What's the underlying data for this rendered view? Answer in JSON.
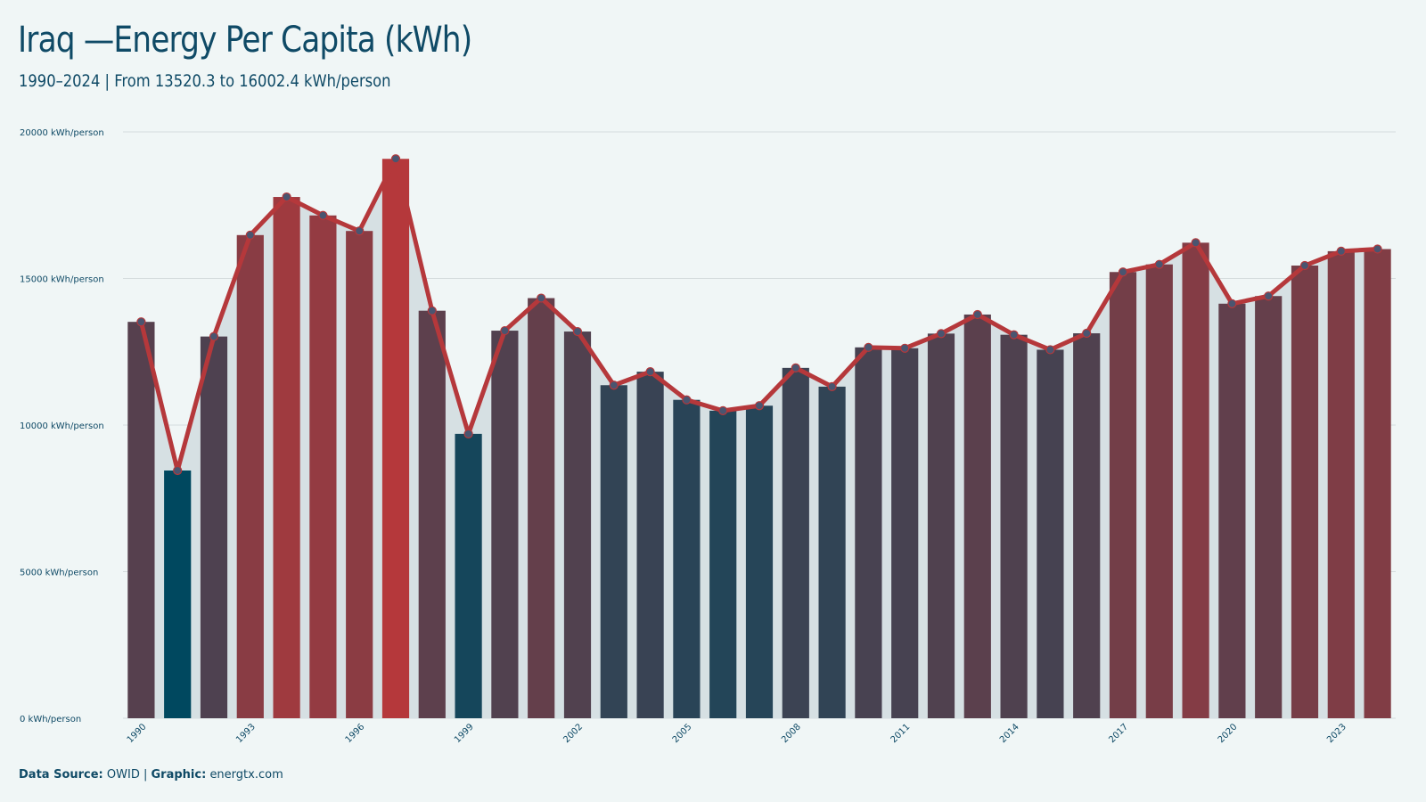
{
  "header": {
    "title": "Iraq —Energy Per Capita (kWh)",
    "subtitle": "1990–2024 | From 13520.3  to 16002.4  kWh/person"
  },
  "footer": {
    "source_label": "Data Source:",
    "source_value": "OWID",
    "separator": "|",
    "graphic_label": "Graphic:",
    "graphic_value": "energtx.com"
  },
  "colors": {
    "background": "#f0f6f6",
    "line": "#b5383b",
    "low": "#00485f",
    "high": "#b5383b",
    "marker": "#4a5570",
    "area": "#d6e0e3",
    "grid": "#d5dcdd"
  },
  "chart_data": {
    "type": "bar",
    "x": [
      1990,
      1991,
      1992,
      1993,
      1994,
      1995,
      1996,
      1997,
      1998,
      1999,
      2000,
      2001,
      2002,
      2003,
      2004,
      2005,
      2006,
      2007,
      2008,
      2009,
      2010,
      2011,
      2012,
      2013,
      2014,
      2015,
      2016,
      2017,
      2018,
      2019,
      2020,
      2021,
      2022,
      2023,
      2024
    ],
    "values": [
      13520.3,
      8450,
      13020,
      16480,
      17780,
      17150,
      16620,
      19080,
      13900,
      9700,
      13220,
      14330,
      13190,
      11360,
      11820,
      10860,
      10490,
      10660,
      11950,
      11310,
      12650,
      12620,
      13120,
      13770,
      13080,
      12570,
      13130,
      15220,
      15480,
      16220,
      14140,
      14400,
      15440,
      15930,
      16002.4
    ],
    "xticks": [
      "1990",
      "1993",
      "1996",
      "1999",
      "2002",
      "2005",
      "2008",
      "2011",
      "2014",
      "2017",
      "2020",
      "2023"
    ],
    "yticks": [
      0,
      5000,
      10000,
      15000,
      20000
    ],
    "ytick_labels": [
      "0 kWh/person",
      "5000 kWh/person",
      "10000 kWh/person",
      "15000 kWh/person",
      "20000 kWh/person"
    ],
    "ylim": [
      0,
      20000
    ],
    "grid": true,
    "overlay": "line with markers"
  }
}
